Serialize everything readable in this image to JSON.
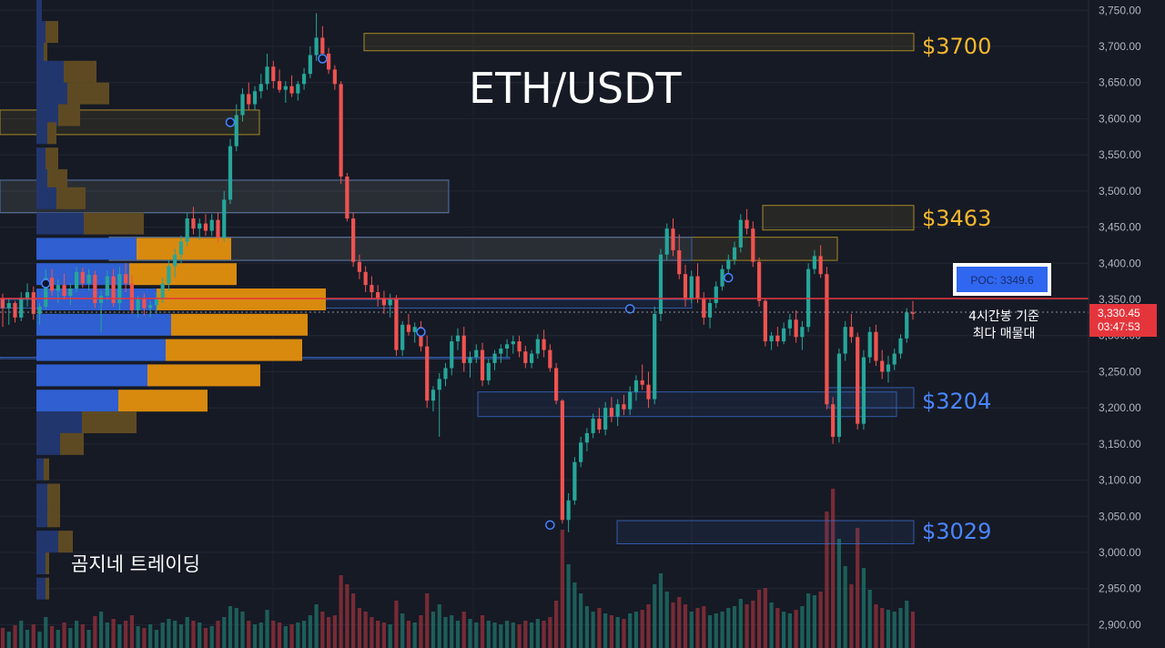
{
  "chart_data": {
    "type": "candlestick",
    "title": "ETH/USDT",
    "watermark": "곰지네 트레이딩",
    "ylim": [
      2880,
      3760
    ],
    "y_ticks": [
      {
        "value": 3750,
        "label": "3,750.00"
      },
      {
        "value": 3700,
        "label": "3,700.00"
      },
      {
        "value": 3650,
        "label": "3,650.00"
      },
      {
        "value": 3600,
        "label": "3,600.00"
      },
      {
        "value": 3550,
        "label": "3,550.00"
      },
      {
        "value": 3500,
        "label": "3,500.00"
      },
      {
        "value": 3450,
        "label": "3,450.00"
      },
      {
        "value": 3400,
        "label": "3,400.00"
      },
      {
        "value": 3350,
        "label": "3,350.00"
      },
      {
        "value": 3300,
        "label": "3,300.00"
      },
      {
        "value": 3250,
        "label": "3,250.00"
      },
      {
        "value": 3200,
        "label": "3,200.00"
      },
      {
        "value": 3150,
        "label": "3,150.00"
      },
      {
        "value": 3100,
        "label": "3,100.00"
      },
      {
        "value": 3050,
        "label": "3,050.00"
      },
      {
        "value": 3000,
        "label": "3,000.00"
      },
      {
        "value": 2950,
        "label": "2,950.00"
      },
      {
        "value": 2900,
        "label": "2,900.00"
      }
    ],
    "current_price": {
      "value": 3330.45,
      "label": "3,330.45",
      "countdown": "03:47:53"
    },
    "poc": {
      "value": 3350,
      "label": "POC: 3349.6",
      "note_line1": "4시간봉 기준",
      "note_line2": "최다 매물대"
    },
    "key_levels": [
      {
        "label": "$3700",
        "value": 3700,
        "color": "#f5b82e"
      },
      {
        "label": "$3463",
        "value": 3463,
        "color": "#f5b82e"
      },
      {
        "label": "$3204",
        "value": 3204,
        "color": "#4a86ff"
      },
      {
        "label": "$3029",
        "value": 3029,
        "color": "#4a86ff"
      }
    ],
    "zones": [
      {
        "from": 3718,
        "to": 3694,
        "x0": 400,
        "x1": 1004,
        "color": "#c9a227"
      },
      {
        "from": 3612,
        "to": 3578,
        "x0": 0,
        "x1": 285,
        "color": "#c9a227"
      },
      {
        "from": 3515,
        "to": 3470,
        "x0": 0,
        "x1": 493,
        "color": "#c9a227"
      },
      {
        "from": 3480,
        "to": 3446,
        "x0": 838,
        "x1": 1004,
        "color": "#c9a227"
      },
      {
        "from": 3436,
        "to": 3404,
        "x0": 120,
        "x1": 920,
        "color": "#c9a227"
      },
      {
        "from": 3515,
        "to": 3470,
        "x0": 0,
        "x1": 493,
        "color": "#3a6cc8"
      },
      {
        "from": 3436,
        "to": 3404,
        "x0": 120,
        "x1": 760,
        "color": "#3a6cc8"
      },
      {
        "from": 3350,
        "to": 3338,
        "x0": 0,
        "x1": 760,
        "color": "#3a6cc8"
      },
      {
        "from": 3270,
        "to": 3268,
        "x0": 0,
        "x1": 560,
        "color": "#3a6cc8"
      },
      {
        "from": 3222,
        "to": 3188,
        "x0": 525,
        "x1": 985,
        "color": "#3a6cc8"
      },
      {
        "from": 3228,
        "to": 3200,
        "x0": 910,
        "x1": 1004,
        "color": "#3a6cc8"
      },
      {
        "from": 3044,
        "to": 3012,
        "x0": 678,
        "x1": 1004,
        "color": "#3a6cc8"
      }
    ],
    "volume_profile": [
      {
        "price": 3750,
        "buy": 6,
        "sell": 0
      },
      {
        "price": 3720,
        "buy": 10,
        "sell": 14
      },
      {
        "price": 3690,
        "buy": 8,
        "sell": 4
      },
      {
        "price": 3665,
        "buy": 30,
        "sell": 36
      },
      {
        "price": 3635,
        "buy": 34,
        "sell": 46
      },
      {
        "price": 3605,
        "buy": 24,
        "sell": 24
      },
      {
        "price": 3580,
        "buy": 12,
        "sell": 10
      },
      {
        "price": 3545,
        "buy": 10,
        "sell": 14
      },
      {
        "price": 3515,
        "buy": 12,
        "sell": 22
      },
      {
        "price": 3490,
        "buy": 22,
        "sell": 32
      },
      {
        "price": 3455,
        "buy": 52,
        "sell": 66
      },
      {
        "price": 3420,
        "buy": 110,
        "sell": 104
      },
      {
        "price": 3385,
        "buy": 102,
        "sell": 118
      },
      {
        "price": 3350,
        "buy": 132,
        "sell": 186
      },
      {
        "price": 3315,
        "buy": 148,
        "sell": 150
      },
      {
        "price": 3280,
        "buy": 142,
        "sell": 150
      },
      {
        "price": 3245,
        "buy": 122,
        "sell": 124
      },
      {
        "price": 3210,
        "buy": 90,
        "sell": 98
      },
      {
        "price": 3180,
        "buy": 50,
        "sell": 60
      },
      {
        "price": 3150,
        "buy": 26,
        "sell": 26
      },
      {
        "price": 3115,
        "buy": 8,
        "sell": 6
      },
      {
        "price": 3080,
        "buy": 12,
        "sell": 14
      },
      {
        "price": 3050,
        "buy": 12,
        "sell": 14
      },
      {
        "price": 3015,
        "buy": 24,
        "sell": 16
      },
      {
        "price": 2985,
        "buy": 10,
        "sell": 4
      },
      {
        "price": 2950,
        "buy": 10,
        "sell": 4
      }
    ],
    "candles": [
      [
        3352,
        3358,
        3312,
        3338
      ],
      [
        3338,
        3352,
        3315,
        3345
      ],
      [
        3345,
        3348,
        3318,
        3325
      ],
      [
        3325,
        3360,
        3320,
        3352
      ],
      [
        3352,
        3372,
        3340,
        3360
      ],
      [
        3360,
        3368,
        3322,
        3330
      ],
      [
        3330,
        3345,
        3315,
        3340
      ],
      [
        3340,
        3392,
        3336,
        3380
      ],
      [
        3380,
        3392,
        3355,
        3362
      ],
      [
        3362,
        3378,
        3345,
        3370
      ],
      [
        3370,
        3386,
        3350,
        3355
      ],
      [
        3355,
        3372,
        3342,
        3365
      ],
      [
        3365,
        3395,
        3360,
        3388
      ],
      [
        3388,
        3394,
        3366,
        3372
      ],
      [
        3372,
        3392,
        3362,
        3384
      ],
      [
        3384,
        3390,
        3338,
        3345
      ],
      [
        3345,
        3362,
        3305,
        3355
      ],
      [
        3355,
        3390,
        3348,
        3382
      ],
      [
        3382,
        3392,
        3340,
        3345
      ],
      [
        3345,
        3395,
        3335,
        3385
      ],
      [
        3385,
        3400,
        3360,
        3372
      ],
      [
        3372,
        3384,
        3330,
        3335
      ],
      [
        3335,
        3355,
        3325,
        3350
      ],
      [
        3350,
        3358,
        3328,
        3338
      ],
      [
        3338,
        3348,
        3325,
        3342
      ],
      [
        3342,
        3360,
        3330,
        3350
      ],
      [
        3350,
        3380,
        3345,
        3372
      ],
      [
        3372,
        3404,
        3362,
        3396
      ],
      [
        3396,
        3420,
        3380,
        3412
      ],
      [
        3412,
        3438,
        3400,
        3430
      ],
      [
        3430,
        3470,
        3424,
        3462
      ],
      [
        3462,
        3478,
        3440,
        3448
      ],
      [
        3448,
        3462,
        3432,
        3455
      ],
      [
        3455,
        3468,
        3438,
        3445
      ],
      [
        3445,
        3468,
        3438,
        3460
      ],
      [
        3460,
        3470,
        3428,
        3435
      ],
      [
        3435,
        3500,
        3430,
        3488
      ],
      [
        3488,
        3572,
        3482,
        3562
      ],
      [
        3562,
        3620,
        3555,
        3605
      ],
      [
        3605,
        3642,
        3596,
        3634
      ],
      [
        3634,
        3650,
        3612,
        3620
      ],
      [
        3620,
        3645,
        3612,
        3638
      ],
      [
        3638,
        3662,
        3628,
        3648
      ],
      [
        3648,
        3690,
        3640,
        3672
      ],
      [
        3672,
        3680,
        3642,
        3652
      ],
      [
        3652,
        3668,
        3636,
        3640
      ],
      [
        3640,
        3652,
        3622,
        3645
      ],
      [
        3645,
        3660,
        3630,
        3635
      ],
      [
        3635,
        3652,
        3625,
        3648
      ],
      [
        3648,
        3670,
        3640,
        3662
      ],
      [
        3662,
        3700,
        3656,
        3688
      ],
      [
        3688,
        3746,
        3680,
        3712
      ],
      [
        3712,
        3728,
        3680,
        3690
      ],
      [
        3690,
        3698,
        3662,
        3668
      ],
      [
        3668,
        3674,
        3640,
        3648
      ],
      [
        3648,
        3652,
        3510,
        3520
      ],
      [
        3520,
        3525,
        3458,
        3462
      ],
      [
        3462,
        3470,
        3395,
        3402
      ],
      [
        3402,
        3412,
        3378,
        3388
      ],
      [
        3388,
        3396,
        3360,
        3370
      ],
      [
        3370,
        3382,
        3350,
        3360
      ],
      [
        3360,
        3370,
        3340,
        3352
      ],
      [
        3352,
        3362,
        3330,
        3342
      ],
      [
        3342,
        3358,
        3325,
        3350
      ],
      [
        3350,
        3356,
        3272,
        3280
      ],
      [
        3280,
        3320,
        3272,
        3315
      ],
      [
        3315,
        3330,
        3300,
        3305
      ],
      [
        3305,
        3318,
        3290,
        3312
      ],
      [
        3312,
        3320,
        3278,
        3285
      ],
      [
        3285,
        3300,
        3200,
        3210
      ],
      [
        3210,
        3230,
        3195,
        3225
      ],
      [
        3225,
        3248,
        3160,
        3240
      ],
      [
        3240,
        3262,
        3230,
        3255
      ],
      [
        3255,
        3300,
        3245,
        3292
      ],
      [
        3292,
        3310,
        3280,
        3300
      ],
      [
        3300,
        3312,
        3250,
        3262
      ],
      [
        3262,
        3278,
        3242,
        3270
      ],
      [
        3270,
        3288,
        3262,
        3280
      ],
      [
        3280,
        3290,
        3230,
        3238
      ],
      [
        3238,
        3268,
        3232,
        3262
      ],
      [
        3262,
        3280,
        3252,
        3275
      ],
      [
        3275,
        3288,
        3262,
        3282
      ],
      [
        3282,
        3295,
        3270,
        3288
      ],
      [
        3288,
        3300,
        3275,
        3292
      ],
      [
        3292,
        3300,
        3270,
        3278
      ],
      [
        3278,
        3286,
        3255,
        3262
      ],
      [
        3262,
        3280,
        3255,
        3275
      ],
      [
        3275,
        3302,
        3268,
        3295
      ],
      [
        3295,
        3308,
        3270,
        3280
      ],
      [
        3280,
        3288,
        3250,
        3255
      ],
      [
        3255,
        3262,
        3205,
        3210
      ],
      [
        3210,
        3212,
        3040,
        3045
      ],
      [
        3045,
        3082,
        3028,
        3072
      ],
      [
        3072,
        3132,
        3066,
        3125
      ],
      [
        3125,
        3160,
        3118,
        3152
      ],
      [
        3152,
        3172,
        3140,
        3165
      ],
      [
        3165,
        3192,
        3158,
        3185
      ],
      [
        3185,
        3200,
        3165,
        3170
      ],
      [
        3170,
        3208,
        3162,
        3200
      ],
      [
        3200,
        3215,
        3180,
        3188
      ],
      [
        3188,
        3212,
        3175,
        3205
      ],
      [
        3205,
        3218,
        3190,
        3198
      ],
      [
        3198,
        3230,
        3190,
        3222
      ],
      [
        3222,
        3245,
        3210,
        3238
      ],
      [
        3238,
        3260,
        3225,
        3232
      ],
      [
        3232,
        3250,
        3200,
        3212
      ],
      [
        3212,
        3340,
        3205,
        3330
      ],
      [
        3330,
        3420,
        3320,
        3412
      ],
      [
        3412,
        3455,
        3405,
        3448
      ],
      [
        3448,
        3462,
        3410,
        3418
      ],
      [
        3418,
        3440,
        3378,
        3385
      ],
      [
        3385,
        3398,
        3340,
        3350
      ],
      [
        3350,
        3390,
        3345,
        3382
      ],
      [
        3382,
        3400,
        3345,
        3352
      ],
      [
        3352,
        3360,
        3315,
        3325
      ],
      [
        3325,
        3352,
        3310,
        3345
      ],
      [
        3345,
        3375,
        3338,
        3368
      ],
      [
        3368,
        3398,
        3362,
        3392
      ],
      [
        3392,
        3412,
        3385,
        3405
      ],
      [
        3405,
        3430,
        3398,
        3422
      ],
      [
        3422,
        3468,
        3415,
        3460
      ],
      [
        3460,
        3475,
        3440,
        3448
      ],
      [
        3448,
        3458,
        3395,
        3402
      ],
      [
        3402,
        3408,
        3340,
        3348
      ],
      [
        3348,
        3352,
        3285,
        3292
      ],
      [
        3292,
        3305,
        3280,
        3300
      ],
      [
        3300,
        3312,
        3285,
        3292
      ],
      [
        3292,
        3318,
        3288,
        3310
      ],
      [
        3310,
        3330,
        3300,
        3322
      ],
      [
        3322,
        3335,
        3290,
        3298
      ],
      [
        3298,
        3320,
        3280,
        3312
      ],
      [
        3312,
        3400,
        3305,
        3392
      ],
      [
        3392,
        3418,
        3385,
        3410
      ],
      [
        3410,
        3425,
        3380,
        3385
      ],
      [
        3385,
        3395,
        3198,
        3205
      ],
      [
        3205,
        3215,
        3150,
        3160
      ],
      [
        3160,
        3282,
        3152,
        3275
      ],
      [
        3275,
        3320,
        3265,
        3312
      ],
      [
        3312,
        3330,
        3290,
        3298
      ],
      [
        3298,
        3304,
        3170,
        3178
      ],
      [
        3178,
        3280,
        3170,
        3270
      ],
      [
        3270,
        3312,
        3262,
        3305
      ],
      [
        3305,
        3315,
        3258,
        3265
      ],
      [
        3265,
        3280,
        3240,
        3250
      ],
      [
        3250,
        3272,
        3235,
        3260
      ],
      [
        3260,
        3282,
        3252,
        3275
      ],
      [
        3275,
        3302,
        3268,
        3296
      ],
      [
        3296,
        3338,
        3290,
        3332
      ],
      [
        3332,
        3348,
        3322,
        3330
      ]
    ],
    "volumes": [
      22,
      18,
      25,
      30,
      20,
      26,
      18,
      34,
      24,
      20,
      28,
      22,
      30,
      26,
      20,
      35,
      40,
      28,
      32,
      26,
      30,
      36,
      24,
      22,
      26,
      20,
      28,
      32,
      30,
      26,
      34,
      30,
      28,
      22,
      24,
      30,
      34,
      46,
      44,
      40,
      30,
      26,
      28,
      42,
      30,
      28,
      24,
      26,
      28,
      30,
      36,
      48,
      40,
      34,
      36,
      80,
      70,
      60,
      44,
      40,
      34,
      30,
      28,
      26,
      52,
      38,
      30,
      28,
      36,
      60,
      40,
      48,
      34,
      36,
      30,
      40,
      32,
      28,
      36,
      30,
      28,
      26,
      30,
      28,
      26,
      30,
      28,
      32,
      30,
      34,
      52,
      130,
      92,
      72,
      60,
      46,
      40,
      44,
      38,
      36,
      34,
      32,
      38,
      40,
      42,
      48,
      70,
      82,
      62,
      50,
      56,
      48,
      40,
      44,
      46,
      36,
      38,
      40,
      44,
      46,
      54,
      48,
      52,
      64,
      66,
      50,
      44,
      40,
      38,
      42,
      46,
      60,
      58,
      62,
      150,
      175,
      120,
      90,
      70,
      132,
      88,
      64,
      48,
      44,
      42,
      40,
      44,
      52,
      40
    ]
  }
}
